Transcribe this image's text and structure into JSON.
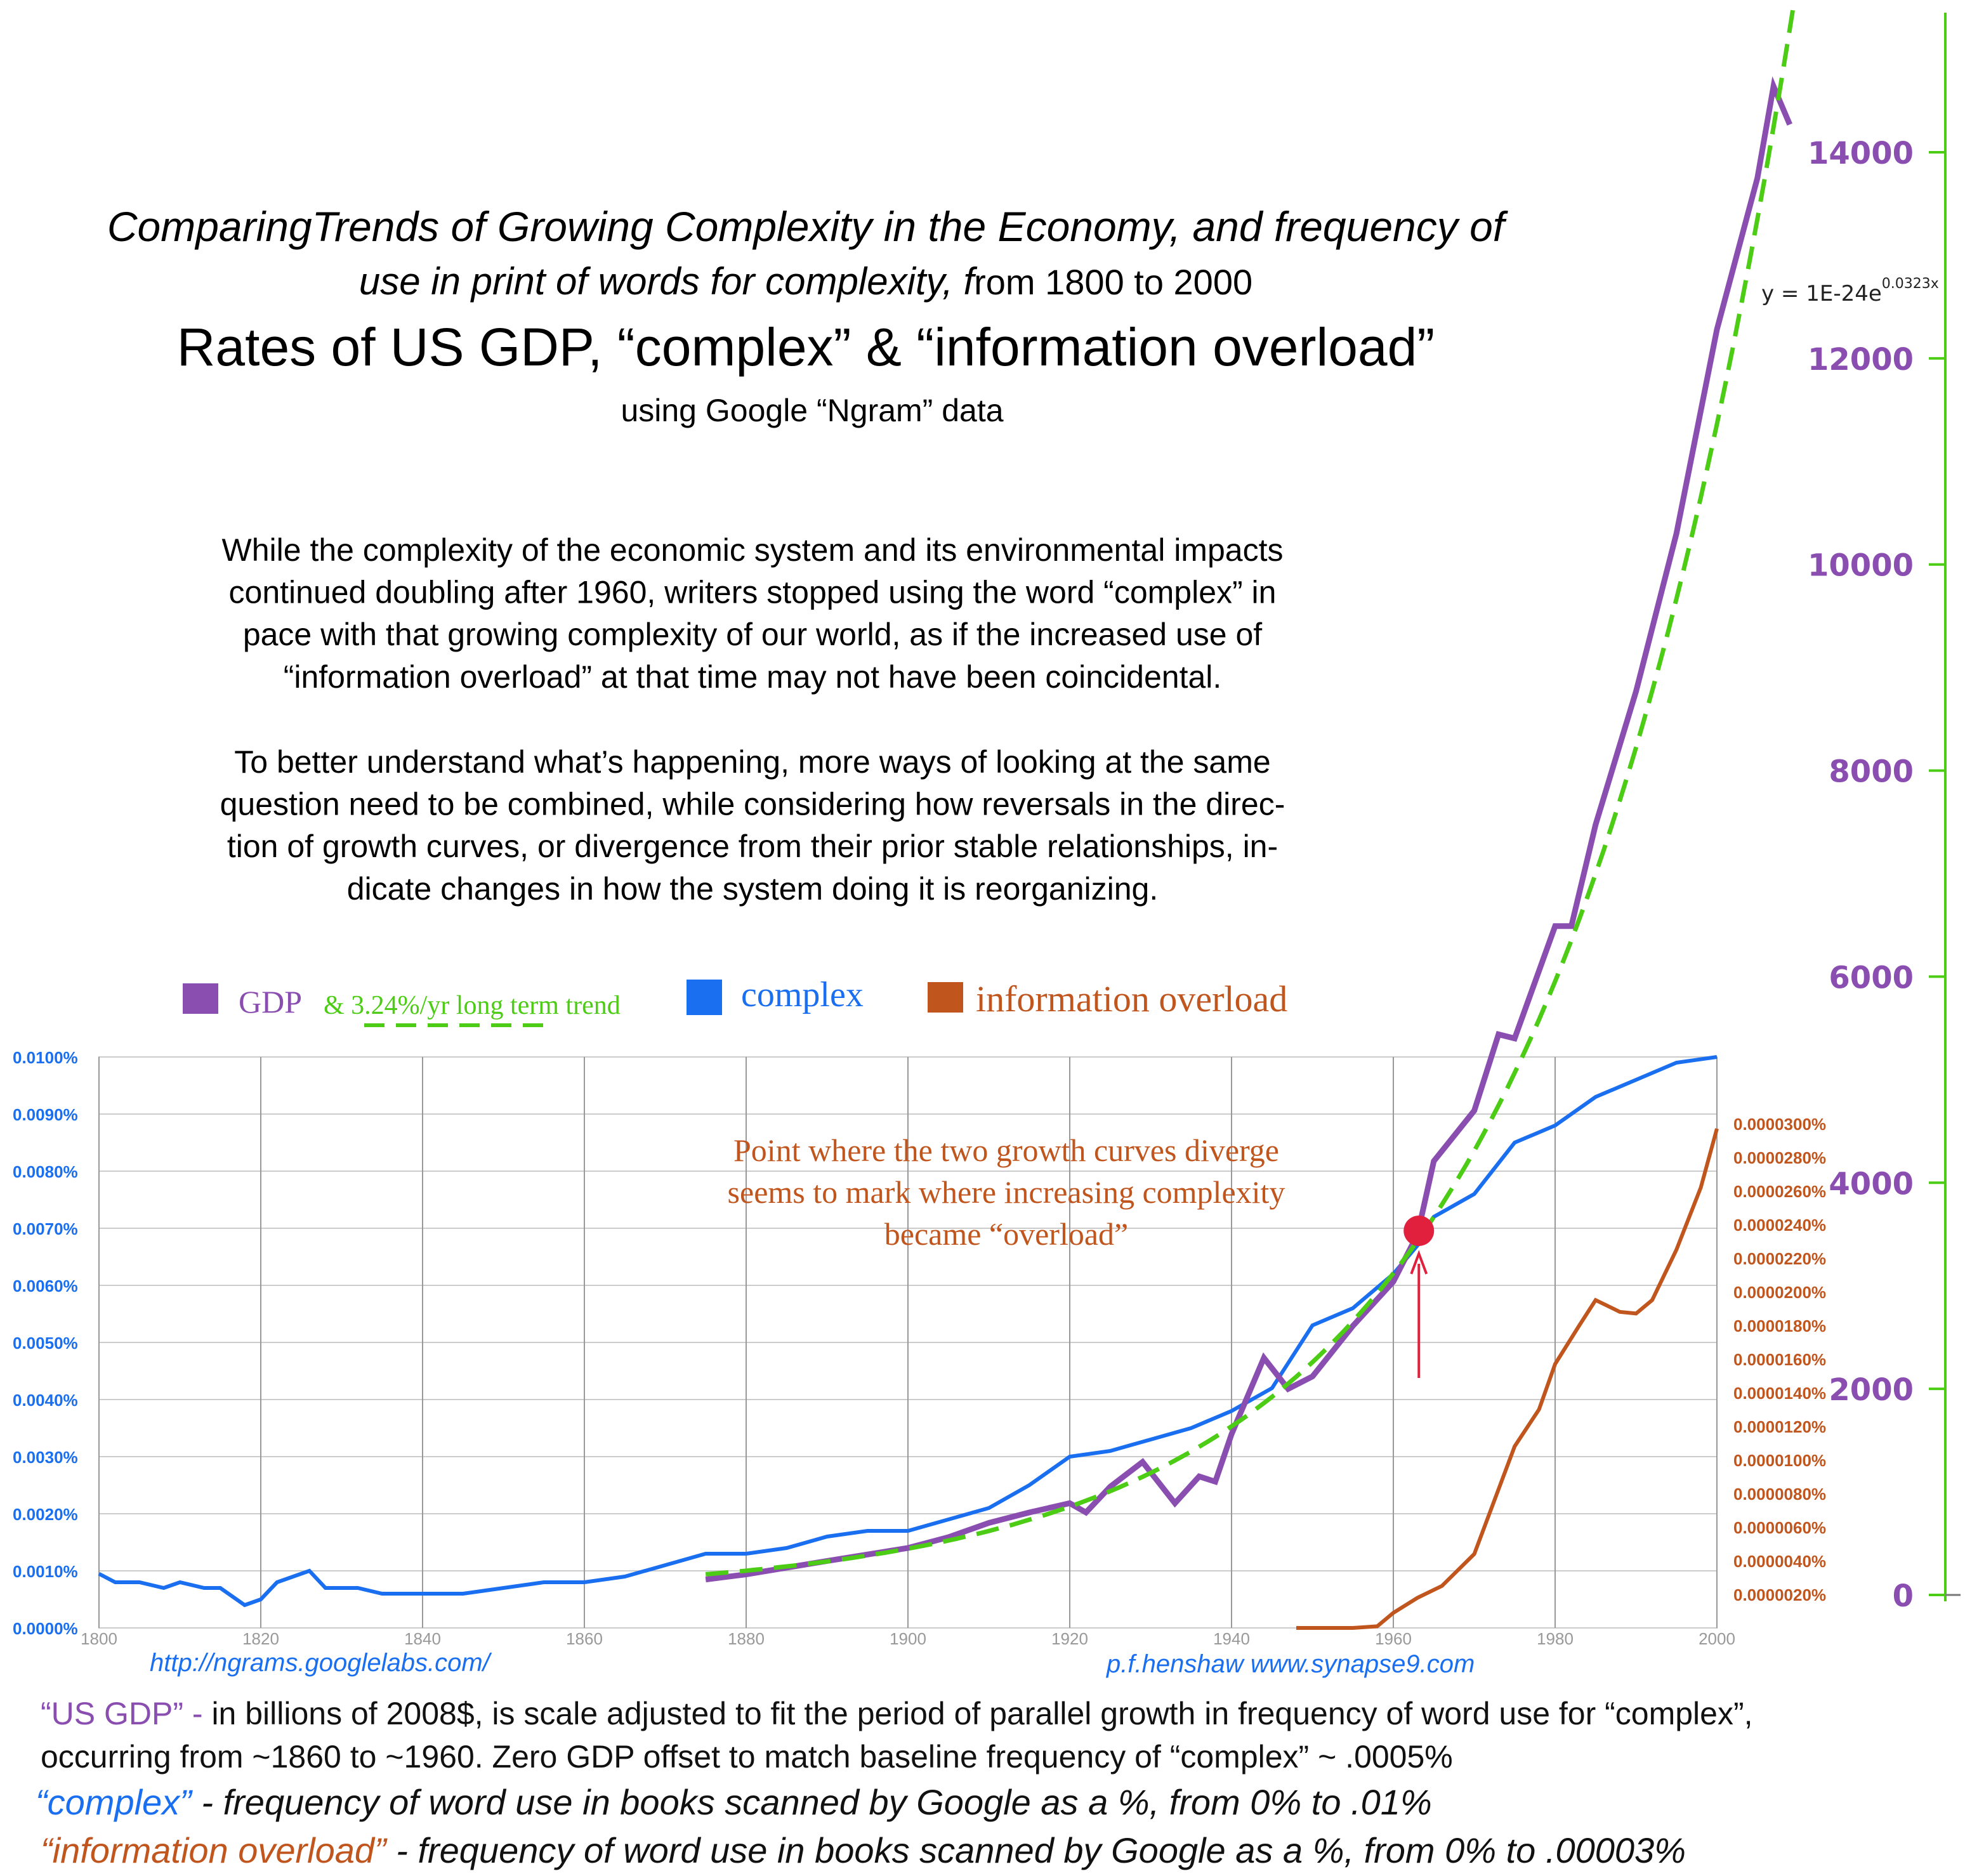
{
  "title": {
    "line1": "ComparingTrends of Growing Complexity in the Economy, and frequency of",
    "line2_italic": "use in print of words for complexity, f",
    "line2_plain": "rom 1800 to 2000",
    "line3": "Rates of US GDP, “complex” & “information overload”",
    "line4": "using Google “Ngram” data"
  },
  "paragraphs": [
    [
      "While the complexity of the economic system and its environmental impacts",
      "continued doubling after 1960, writers stopped using the word “complex” in",
      "pace with that growing complexity of our world, as if the increased use of",
      "“information overload” at that time may not have been coincidental."
    ],
    [
      "To better understand what’s happening, more ways of looking at the same",
      "question need to be combined, while considering how reversals in the direc-",
      "tion of growth curves, or divergence from their prior stable relationships, in-",
      "dicate changes in how the system doing it is reorganizing."
    ]
  ],
  "legend": {
    "gdp": "GDP",
    "trend": "& 3.24%/yr long term trend",
    "complex": "complex",
    "overload": "information overload"
  },
  "annotation": {
    "lines": [
      "Point where the two growth curves diverge",
      "seems to mark where increasing complexity",
      "became “overload”"
    ],
    "year": 1963
  },
  "equation": {
    "base": "y = 1E-24e",
    "exponent": "0.0323x"
  },
  "credits": {
    "left": "http://ngrams.googlelabs.com/",
    "right": "p.f.henshaw www.synapse9.com"
  },
  "footnotes": {
    "gdp_label": "“US GDP” -",
    "gdp_text1": " in billions of 2008$, is scale adjusted to fit the period of parallel growth in frequency of word use for “complex”,",
    "gdp_text2": "occurring from ~1860 to ~1960.   Zero GDP offset to match baseline frequency of “complex” ~ .0005%",
    "complex_label": "“complex”",
    "complex_text": " - frequency of word use in books scanned by Google as a %, from 0% to .01%",
    "overload_label": "“information overload”",
    "overload_text": " - frequency of word use in books scanned by Google as a %, from 0% to .00003%"
  },
  "colors": {
    "gdp": "#8a4db0",
    "complex": "#1a6ff0",
    "overload": "#c0561e",
    "trend": "#4ccc14",
    "marker": "#e0203c"
  },
  "chart_data": {
    "type": "line",
    "x_axis": {
      "range": [
        1800,
        2000
      ],
      "ticks": [
        1800,
        1820,
        1840,
        1860,
        1880,
        1900,
        1920,
        1940,
        1960,
        1980,
        2000
      ]
    },
    "left_axis": {
      "range": [
        0,
        0.01
      ],
      "ticks": [
        "0.0000%",
        "0.0010%",
        "0.0020%",
        "0.0030%",
        "0.0040%",
        "0.0050%",
        "0.0060%",
        "0.0070%",
        "0.0080%",
        "0.0090%",
        "0.0100%"
      ]
    },
    "overload_axis": {
      "range": [
        0,
        3e-05
      ],
      "ticks": [
        "0.0000020%",
        "0.0000040%",
        "0.0000060%",
        "0.0000080%",
        "0.0000100%",
        "0.0000120%",
        "0.0000140%",
        "0.0000160%",
        "0.0000180%",
        "0.0000200%",
        "0.0000220%",
        "0.0000240%",
        "0.0000260%",
        "0.0000280%",
        "0.0000300%"
      ]
    },
    "gdp_axis": {
      "range": [
        0,
        14000
      ],
      "ticks": [
        "0",
        "2000",
        "4000",
        "6000",
        "8000",
        "10000",
        "12000",
        "14000"
      ]
    },
    "grid": true,
    "series": [
      {
        "name": "complex",
        "axis": "left",
        "x": [
          1800,
          1802,
          1805,
          1808,
          1810,
          1813,
          1815,
          1818,
          1820,
          1822,
          1826,
          1828,
          1832,
          1835,
          1840,
          1845,
          1850,
          1855,
          1860,
          1865,
          1870,
          1875,
          1880,
          1885,
          1890,
          1895,
          1900,
          1905,
          1910,
          1915,
          1920,
          1925,
          1930,
          1935,
          1940,
          1945,
          1950,
          1955,
          1960,
          1963,
          1965,
          1970,
          1975,
          1980,
          1985,
          1990,
          1995,
          2000
        ],
        "y": [
          0.00095,
          0.0008,
          0.0008,
          0.0007,
          0.0008,
          0.0007,
          0.0007,
          0.0004,
          0.0005,
          0.0008,
          0.001,
          0.0007,
          0.0007,
          0.0006,
          0.0006,
          0.0006,
          0.0007,
          0.0008,
          0.0008,
          0.0009,
          0.0011,
          0.0013,
          0.0013,
          0.0014,
          0.0016,
          0.0017,
          0.0017,
          0.0019,
          0.0021,
          0.0025,
          0.003,
          0.0031,
          0.0033,
          0.0035,
          0.0038,
          0.0042,
          0.0053,
          0.0056,
          0.0062,
          0.0067,
          0.0072,
          0.0076,
          0.0085,
          0.0088,
          0.0093,
          0.0096,
          0.0099,
          0.01
        ]
      },
      {
        "name": "GDP",
        "axis": "gdp",
        "x": [
          1875,
          1880,
          1890,
          1900,
          1905,
          1910,
          1915,
          1920,
          1922,
          1925,
          1929,
          1933,
          1936,
          1938,
          1940,
          1944,
          1947,
          1950,
          1955,
          1960,
          1963,
          1965,
          1970,
          1973,
          1975,
          1980,
          1982,
          1985,
          1990,
          1995,
          2000,
          2005,
          2007,
          2009
        ],
        "y": [
          150,
          200,
          330,
          455,
          560,
          700,
          800,
          890,
          800,
          1050,
          1290,
          890,
          1150,
          1100,
          1560,
          2300,
          2000,
          2120,
          2610,
          3040,
          3500,
          4210,
          4700,
          5440,
          5400,
          6490,
          6490,
          7475,
          8770,
          10300,
          12280,
          13750,
          14640,
          14270
        ]
      },
      {
        "name": "3.24%/yr long term trend",
        "axis": "gdp",
        "formula": "y = 1E-24e^(0.0323x)",
        "x_range": [
          1875,
          2012
        ]
      },
      {
        "name": "information overload",
        "axis": "overload",
        "x": [
          1948,
          1955,
          1958,
          1960,
          1963,
          1966,
          1970,
          1975,
          1978,
          1980,
          1983,
          1985,
          1988,
          1990,
          1992,
          1995,
          1998,
          2000
        ],
        "y": [
          0,
          0,
          1e-07,
          9e-07,
          1.8e-06,
          2.5e-06,
          4.4e-06,
          1.08e-05,
          1.3e-05,
          1.57e-05,
          1.8e-05,
          1.95e-05,
          1.88e-05,
          1.87e-05,
          1.95e-05,
          2.25e-05,
          2.62e-05,
          2.97e-05
        ]
      }
    ]
  }
}
